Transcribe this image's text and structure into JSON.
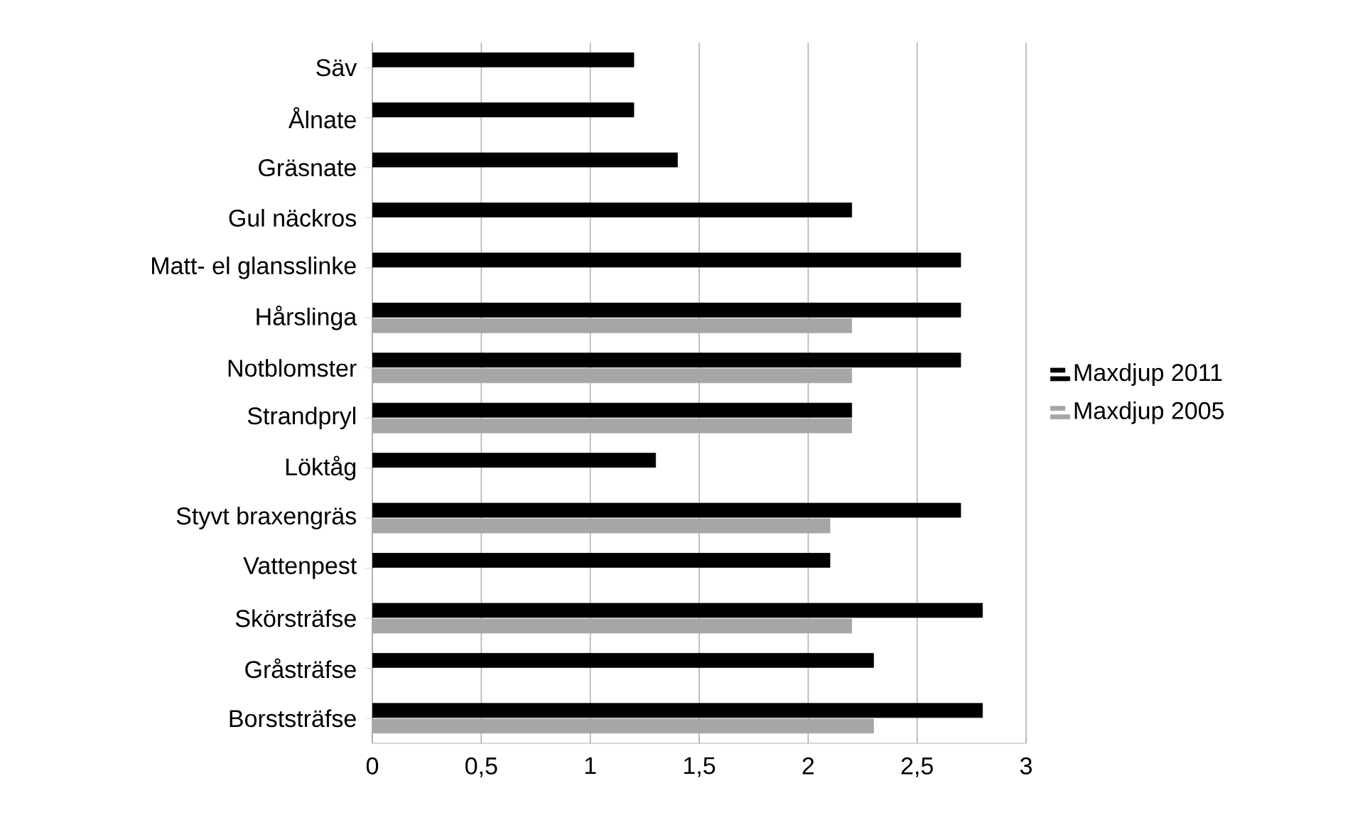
{
  "chart_data": {
    "type": "bar",
    "orientation": "horizontal",
    "categories": [
      "Säv",
      "Ålnate",
      "Gräsnate",
      "Gul näckros",
      "Matt- el glansslinke",
      "Hårslinga",
      "Notblomster",
      "Strandpryl",
      "Löktåg",
      "Styvt braxengräs",
      "Vattenpest",
      "Skörsträfse",
      "Gråsträfse",
      "Borststräfse"
    ],
    "series": [
      {
        "name": "Maxdjup 2011",
        "color": "#000000",
        "values": [
          1.2,
          1.2,
          1.4,
          2.2,
          2.7,
          2.7,
          2.7,
          2.2,
          1.3,
          2.7,
          2.1,
          2.8,
          2.3,
          2.8
        ]
      },
      {
        "name": "Maxdjup 2005",
        "color": "#a6a6a6",
        "values": [
          null,
          null,
          null,
          null,
          null,
          2.2,
          2.2,
          2.2,
          null,
          2.1,
          null,
          2.2,
          null,
          2.3
        ]
      }
    ],
    "xlim": [
      0,
      3
    ],
    "xticks": [
      0,
      {
        "value": 0.5,
        "label": "0,5"
      },
      1,
      {
        "value": 1.5,
        "label": "1,5"
      },
      2,
      {
        "value": 2.5,
        "label": "2,5"
      },
      3
    ],
    "grid": "x",
    "legend": "right"
  }
}
